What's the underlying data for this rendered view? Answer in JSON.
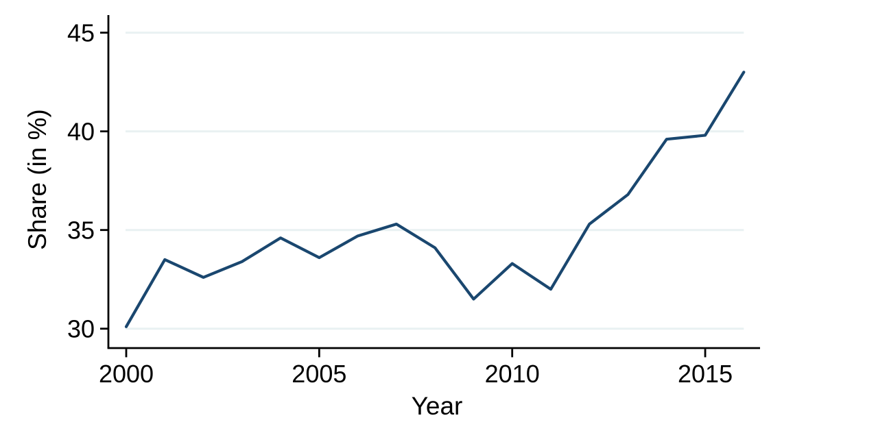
{
  "chart_data": {
    "type": "line",
    "title": "",
    "xlabel": "Year",
    "ylabel": "Share (in %)",
    "x": [
      2000,
      2001,
      2002,
      2003,
      2004,
      2005,
      2006,
      2007,
      2008,
      2009,
      2010,
      2011,
      2012,
      2013,
      2014,
      2015,
      2016
    ],
    "series": [
      {
        "name": "Share",
        "values": [
          30.1,
          33.5,
          32.6,
          33.4,
          34.6,
          33.6,
          34.7,
          35.3,
          34.1,
          31.5,
          33.3,
          32.0,
          35.3,
          36.8,
          39.6,
          39.8,
          43.0
        ],
        "color": "#1a476f"
      }
    ],
    "x_ticks": [
      2000,
      2005,
      2010,
      2015
    ],
    "y_ticks": [
      30,
      35,
      40,
      45
    ],
    "xlim": [
      1999.5,
      2016.4
    ],
    "ylim": [
      29,
      45.9
    ],
    "grid": "horizontal-only",
    "legend": "none",
    "colors": {
      "line": "#1a476f",
      "gridline": "#e9f1f2",
      "axis": "#000000",
      "text": "#000000",
      "background": "#ffffff"
    }
  }
}
